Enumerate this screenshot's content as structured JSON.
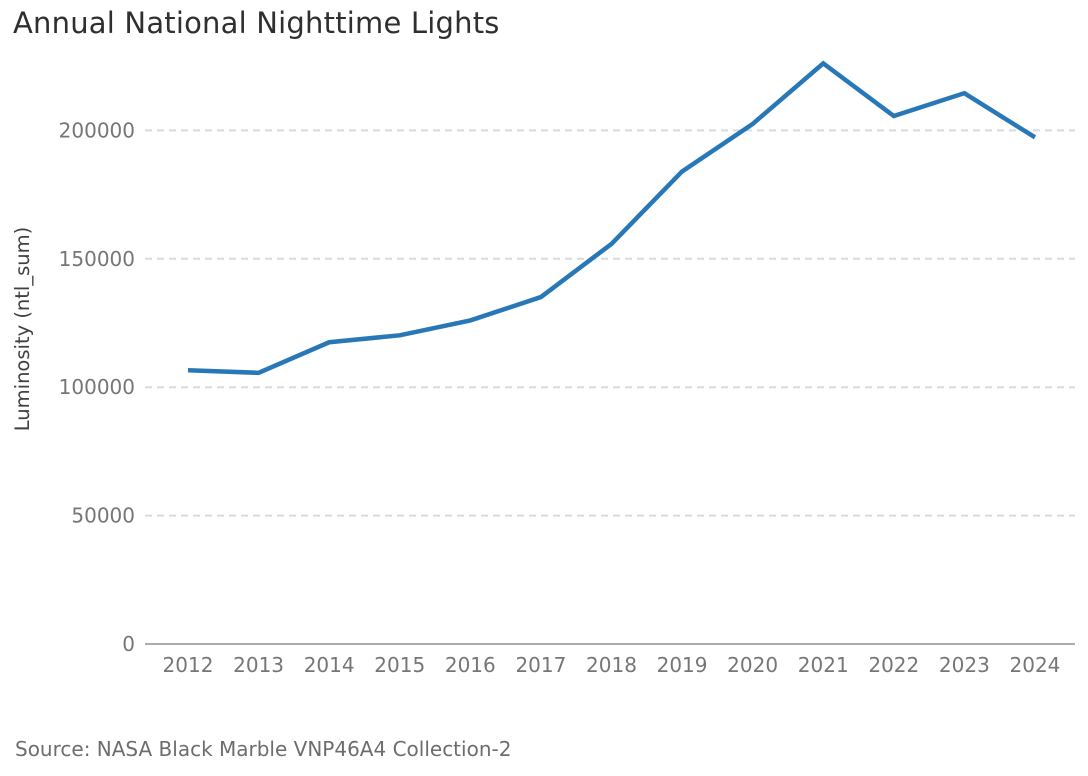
{
  "page": {
    "title": "Annual National Nighttime Lights",
    "source_note": "Source: NASA Black Marble VNP46A4 Collection-2"
  },
  "colors": {
    "line": "#2878b8",
    "grid": "#d5dae1",
    "axis_line": "#8f8f8f",
    "tick_text": "#767676",
    "y_axis_title_text": "#404040",
    "title_text": "#2f2f2f",
    "source_text": "#6d6d6d",
    "background": "#ffffff"
  },
  "chart_data": {
    "type": "line",
    "title": "Annual National Nighttime Lights",
    "xlabel": "",
    "ylabel": "Luminosity (ntl_sum)",
    "x": [
      2012,
      2013,
      2014,
      2015,
      2016,
      2017,
      2018,
      2019,
      2020,
      2021,
      2022,
      2023,
      2024
    ],
    "series": [
      {
        "name": "ntl_sum",
        "color": "#2878b8",
        "values": [
          106600,
          105600,
          117500,
          120200,
          126000,
          135100,
          155800,
          184000,
          202500,
          226100,
          205600,
          214500,
          197300
        ]
      }
    ],
    "ylim": [
      0,
      230000
    ],
    "yticks": [
      0,
      50000,
      100000,
      150000,
      200000
    ],
    "ytick_labels": [
      "0",
      "50000",
      "100000",
      "150000",
      "200000"
    ],
    "grid": "horizontal-dashed",
    "legend": "none",
    "annotation": "Source: NASA Black Marble VNP46A4 Collection-2"
  }
}
